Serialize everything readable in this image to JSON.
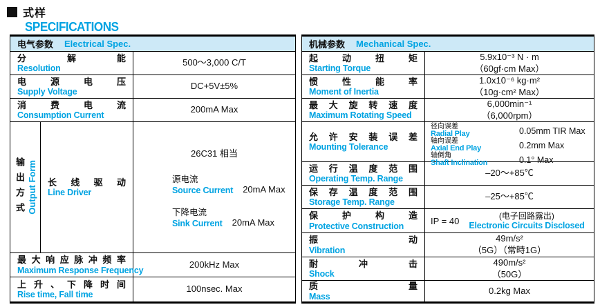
{
  "colors": {
    "accent": "#00a3e2",
    "band_bg": "#cde9f7"
  },
  "header": {
    "title_zh": "式样",
    "title_en": "SPECIFICATIONS"
  },
  "electrical": {
    "band_zh": "电气参数",
    "band_en": "Electrical Spec.",
    "rows": [
      {
        "zh": "分 解 能",
        "en": "Resolution",
        "value": "500～3,000 C/T"
      },
      {
        "zh": "电 源 电 压",
        "en": "Supply Voltage",
        "value": "DC+5V±5%"
      },
      {
        "zh": "消 费 电 流",
        "en": "Consumption Current",
        "value": "200mA Max"
      }
    ],
    "output": {
      "group_zh": "输出方式",
      "group_en": "Output Form",
      "label_zh": "长 线 驱 动",
      "label_en": "Line Driver",
      "value_title": "26C31 相当",
      "items": [
        {
          "zh": "源电流",
          "en": "Source Current",
          "value": "20mA Max"
        },
        {
          "zh": "下降电流",
          "en": "Sink Current",
          "value": "20mA Max"
        }
      ]
    },
    "rows_bottom": [
      {
        "zh": "最 大 响 应 脉 冲 频 率",
        "en": "Maximum Response Frequency",
        "value": "200kHz Max"
      },
      {
        "zh": "上 升 、 下 降 时 间",
        "en": "Rise time, Fall time",
        "value": "100nsec. Max"
      }
    ]
  },
  "mechanical": {
    "band_zh": "机械参数",
    "band_en": "Mechanical Spec.",
    "rows_top": [
      {
        "zh": "起 动 扭 矩",
        "en": "Starting Torque",
        "v1": "5.9x10⁻³ N · m",
        "v2": "（60gf·cm Max）"
      },
      {
        "zh": "惯 性 能 率",
        "en": "Moment of Inertia",
        "v1": "1.0x10⁻⁶ kg·m²",
        "v2": "（10g·cm² Max）"
      },
      {
        "zh": "最 大 旋 转 速 度",
        "en": "Maximum Rotating Speed",
        "v1": "6,000min⁻¹",
        "v2": "（6,000rpm）"
      }
    ],
    "tolerance": {
      "zh": "允 许 安 装 误 差",
      "en": "Mounting Tolerance",
      "items": [
        {
          "zh": "径向误差",
          "en": "Radial Play",
          "value": "0.05mm TIR Max"
        },
        {
          "zh": "轴向误差",
          "en": "Axial End Play",
          "value": "0.2mm Max"
        },
        {
          "zh": "轴倒角",
          "en": "Shaft Inclination",
          "value": "0.1° Max"
        }
      ]
    },
    "rows_mid": [
      {
        "zh": "运 行 温 度 范 围",
        "en": "Operating Temp. Range",
        "v1": "–20～+85℃"
      },
      {
        "zh": "保 存 温 度 范 围",
        "en": "Storage Temp. Range",
        "v1": "–25～+85℃"
      }
    ],
    "protective": {
      "zh": "保 护 构 造",
      "en": "Protective Construction",
      "ip": "IP = 40",
      "note_zh": "(电子回路露出)",
      "note_en": "Electronic Circuits Disclosed"
    },
    "rows_bottom": [
      {
        "zh": "振 动",
        "en": "Vibration",
        "v1": "49m/s²",
        "v2": "（5G）（常時1G）"
      },
      {
        "zh": "耐 冲 击",
        "en": "Shock",
        "v1": "490m/s²",
        "v2": "（50G）"
      },
      {
        "zh": "质 量",
        "en": "Mass",
        "v1": "0.2kg Max"
      }
    ]
  }
}
